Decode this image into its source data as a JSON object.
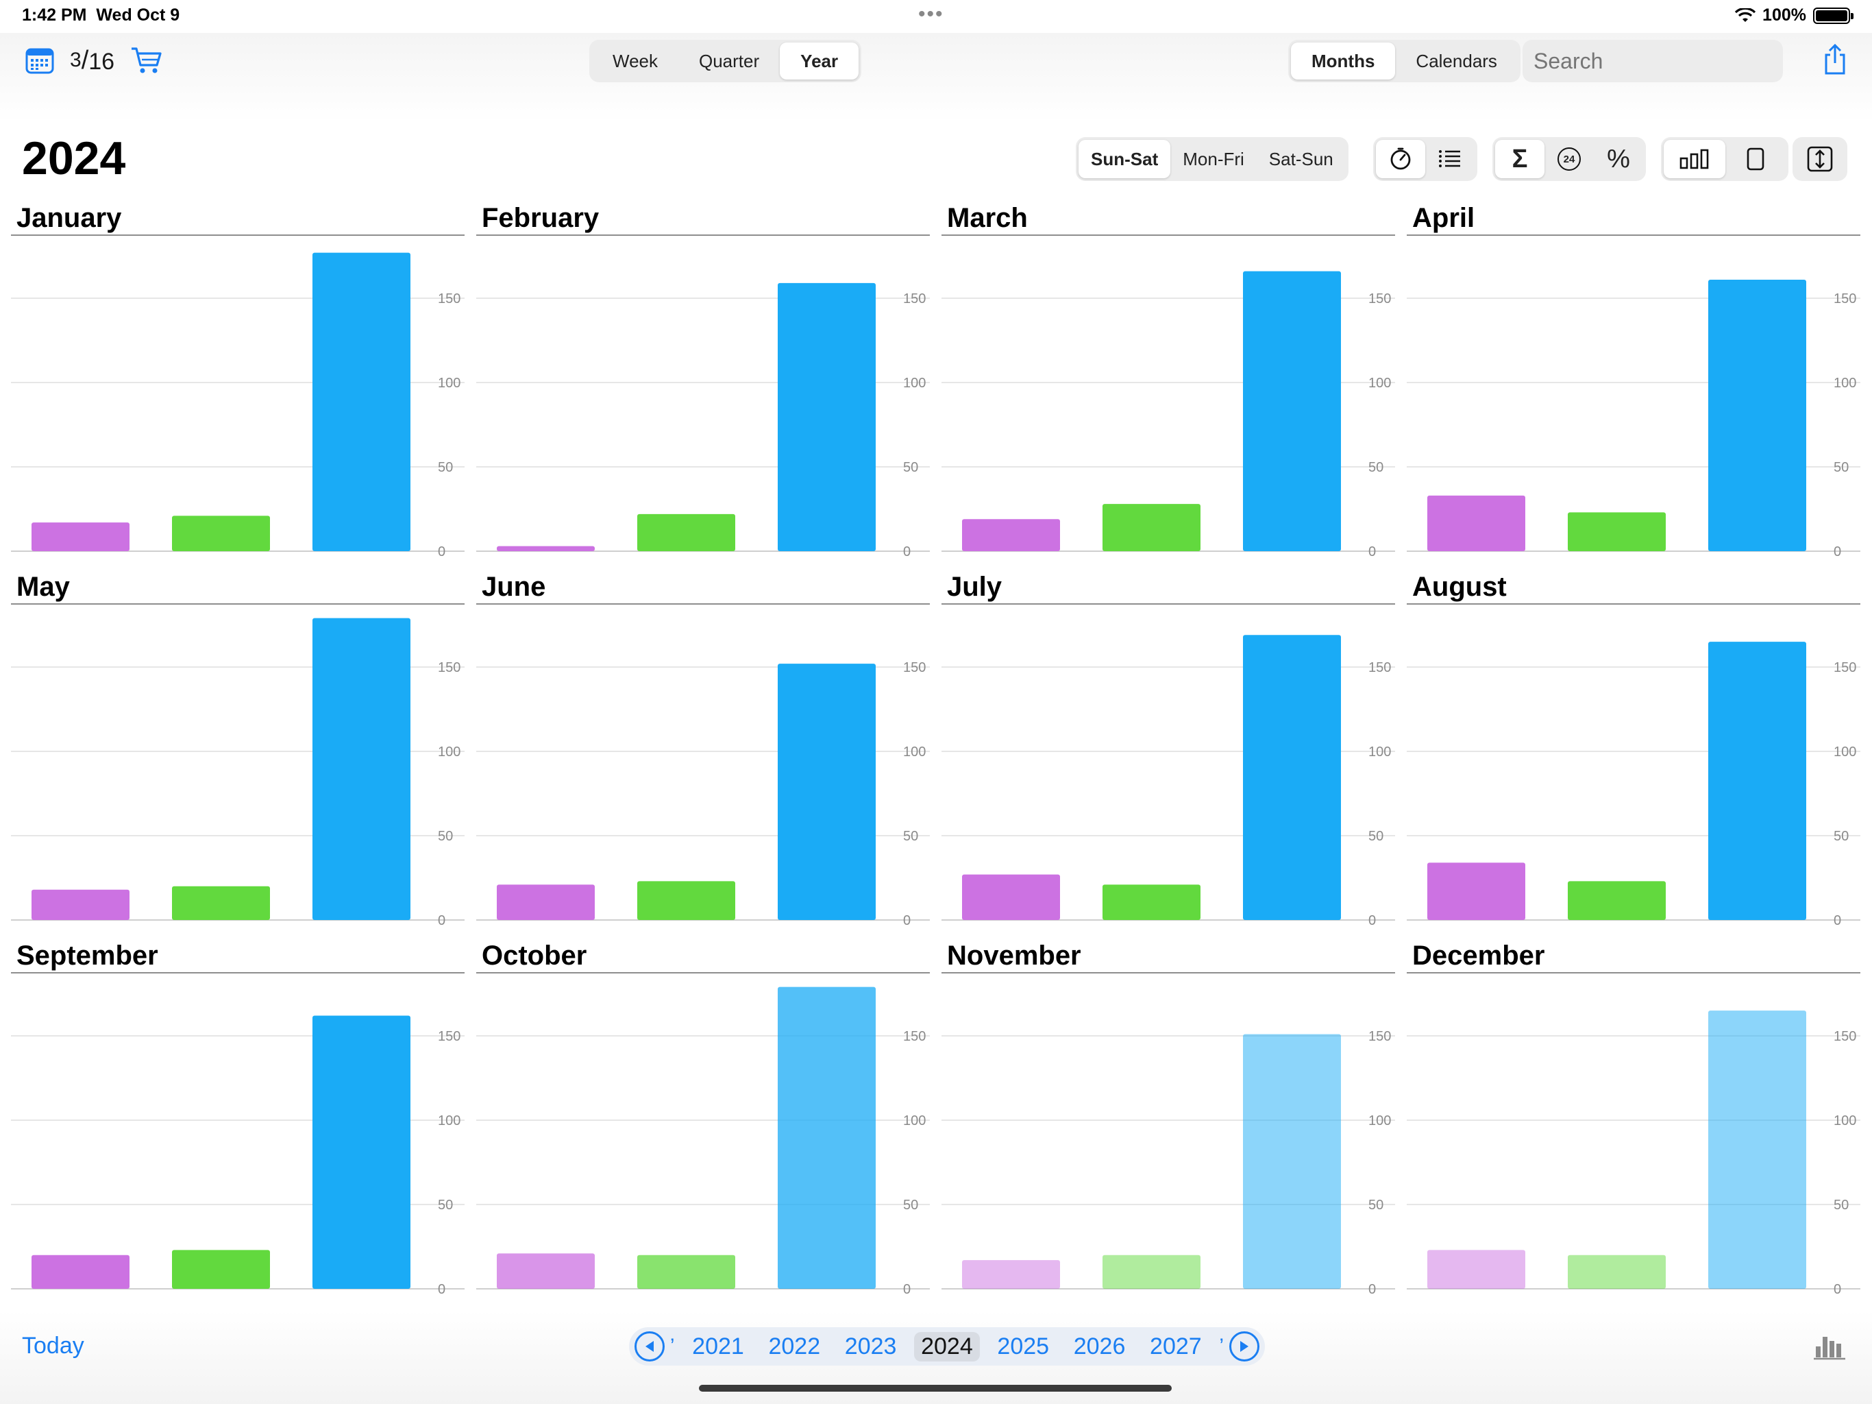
{
  "status_bar": {
    "time": "1:42 PM",
    "date": "Wed Oct 9",
    "battery": "100%"
  },
  "toolbar": {
    "counter_numerator": "3",
    "counter_denominator": "16",
    "range_tabs": [
      "Week",
      "Quarter",
      "Year"
    ],
    "range_selected": "Year",
    "view_tabs": [
      "Months",
      "Calendars"
    ],
    "view_selected": "Months",
    "search_placeholder": "Search"
  },
  "header": {
    "year_title": "2024",
    "day_filter": [
      "Sun-Sat",
      "Mon-Fri",
      "Sat-Sun"
    ],
    "day_filter_selected": "Sun-Sat",
    "percent_symbol": "%",
    "sigma_symbol": "Σ",
    "hours_badge": "24"
  },
  "chart_data": {
    "type": "bar",
    "series_colors": [
      "#cc72e2",
      "#62d93e",
      "#1aabf6"
    ],
    "y_ticks": [
      "150",
      "100",
      "50",
      "0"
    ],
    "ylim": [
      0,
      185
    ],
    "grid": true,
    "months": [
      {
        "name": "January",
        "values": [
          17,
          21,
          177
        ],
        "opacity": 1
      },
      {
        "name": "February",
        "values": [
          3,
          22,
          159
        ],
        "opacity": 1
      },
      {
        "name": "March",
        "values": [
          19,
          28,
          166
        ],
        "opacity": 1
      },
      {
        "name": "April",
        "values": [
          33,
          23,
          161
        ],
        "opacity": 1
      },
      {
        "name": "May",
        "values": [
          18,
          20,
          179
        ],
        "opacity": 1
      },
      {
        "name": "June",
        "values": [
          21,
          23,
          152
        ],
        "opacity": 1
      },
      {
        "name": "July",
        "values": [
          27,
          21,
          169
        ],
        "opacity": 1
      },
      {
        "name": "August",
        "values": [
          34,
          23,
          165
        ],
        "opacity": 1
      },
      {
        "name": "September",
        "values": [
          20,
          23,
          162
        ],
        "opacity": 1
      },
      {
        "name": "October",
        "values": [
          21,
          20,
          179
        ],
        "opacity": 0.75
      },
      {
        "name": "November",
        "values": [
          17,
          20,
          151
        ],
        "opacity": 0.5
      },
      {
        "name": "December",
        "values": [
          23,
          20,
          165
        ],
        "opacity": 0.5
      }
    ]
  },
  "bottom_bar": {
    "today_label": "Today",
    "left_edge": "’",
    "years": [
      "2021",
      "2022",
      "2023",
      "2024",
      "2025",
      "2026",
      "2027"
    ],
    "selected_year": "2024",
    "right_edge": "’"
  }
}
